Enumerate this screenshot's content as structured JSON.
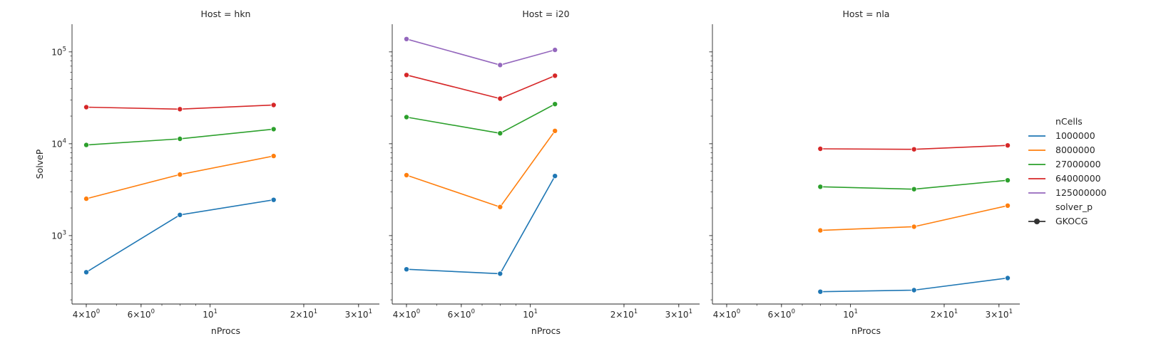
{
  "chart_data": {
    "type": "line",
    "xlabel": "nProcs",
    "ylabel": "SolveP",
    "xscale": "log",
    "yscale": "log",
    "xlim": [
      3.6,
      35
    ],
    "ylim": [
      180,
      200000
    ],
    "x_ticks": [
      {
        "value": 4,
        "base": "4",
        "mult": "×",
        "pow": "10",
        "exp": "0"
      },
      {
        "value": 6,
        "base": "6",
        "mult": "×",
        "pow": "10",
        "exp": "0"
      },
      {
        "value": 10,
        "base": "",
        "mult": "",
        "pow": "10",
        "exp": "1"
      },
      {
        "value": 20,
        "base": "2",
        "mult": "×",
        "pow": "10",
        "exp": "1"
      },
      {
        "value": 30,
        "base": "3",
        "mult": "×",
        "pow": "10",
        "exp": "1"
      }
    ],
    "y_ticks": [
      {
        "value": 1000,
        "base": "10",
        "exp": "3"
      },
      {
        "value": 10000,
        "base": "10",
        "exp": "4"
      },
      {
        "value": 100000,
        "base": "10",
        "exp": "5"
      }
    ],
    "legend": {
      "position": "right",
      "hue_title": "nCells",
      "style_title": "solver_p",
      "style_entry": "GKOCG",
      "entries": [
        {
          "label": "1000000",
          "color": "#1f77b4"
        },
        {
          "label": "8000000",
          "color": "#ff7f0e"
        },
        {
          "label": "27000000",
          "color": "#2ca02c"
        },
        {
          "label": "64000000",
          "color": "#d62728"
        },
        {
          "label": "125000000",
          "color": "#9467bd"
        }
      ]
    },
    "panels": [
      {
        "title": "Host = hkn",
        "series": [
          {
            "name": "1000000",
            "color": "#1f77b4",
            "x": [
              4,
              8,
              16
            ],
            "y": [
              400,
              1680,
              2450
            ]
          },
          {
            "name": "8000000",
            "color": "#ff7f0e",
            "x": [
              4,
              8,
              16
            ],
            "y": [
              2520,
              4620,
              7350
            ]
          },
          {
            "name": "27000000",
            "color": "#2ca02c",
            "x": [
              4,
              8,
              16
            ],
            "y": [
              9700,
              11300,
              14400
            ]
          },
          {
            "name": "64000000",
            "color": "#d62728",
            "x": [
              4,
              8,
              16
            ],
            "y": [
              25000,
              23800,
              26400
            ]
          }
        ]
      },
      {
        "title": "Host = i20",
        "series": [
          {
            "name": "1000000",
            "color": "#1f77b4",
            "x": [
              4,
              8,
              12
            ],
            "y": [
              430,
              385,
              4450
            ]
          },
          {
            "name": "8000000",
            "color": "#ff7f0e",
            "x": [
              4,
              8,
              12
            ],
            "y": [
              4550,
              2050,
              13800
            ]
          },
          {
            "name": "27000000",
            "color": "#2ca02c",
            "x": [
              4,
              8,
              12
            ],
            "y": [
              19500,
              13000,
              27000
            ]
          },
          {
            "name": "64000000",
            "color": "#d62728",
            "x": [
              4,
              8,
              12
            ],
            "y": [
              56000,
              31000,
              55000
            ]
          },
          {
            "name": "125000000",
            "color": "#9467bd",
            "x": [
              4,
              8,
              12
            ],
            "y": [
              138000,
              72000,
              105000
            ]
          }
        ]
      },
      {
        "title": "Host = nla",
        "series": [
          {
            "name": "1000000",
            "color": "#1f77b4",
            "x": [
              8,
              16,
              32
            ],
            "y": [
              245,
              255,
              345
            ]
          },
          {
            "name": "8000000",
            "color": "#ff7f0e",
            "x": [
              8,
              16,
              32
            ],
            "y": [
              1140,
              1250,
              2120
            ]
          },
          {
            "name": "27000000",
            "color": "#2ca02c",
            "x": [
              8,
              16,
              32
            ],
            "y": [
              3400,
              3200,
              4000
            ]
          },
          {
            "name": "64000000",
            "color": "#d62728",
            "x": [
              8,
              16,
              32
            ],
            "y": [
              8800,
              8700,
              9600
            ]
          }
        ]
      }
    ]
  }
}
